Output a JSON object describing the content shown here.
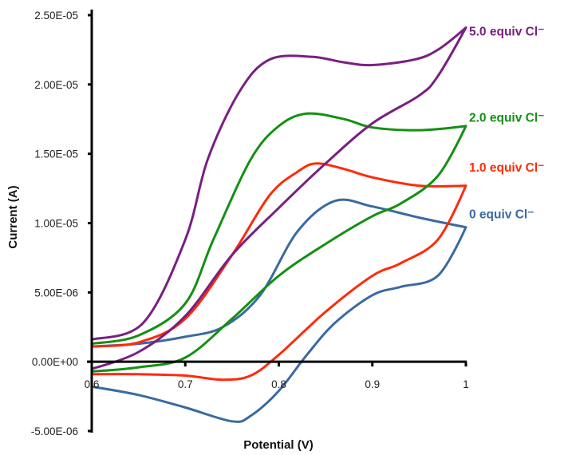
{
  "chart_data": {
    "type": "line",
    "title": "",
    "xlabel": "Potential (V)",
    "ylabel": "Current (A)",
    "xlim": [
      0.6,
      1.0
    ],
    "ylim": [
      -5e-06,
      2.5e-05
    ],
    "grid": false,
    "legend": "inline-right",
    "x_ticks": [
      {
        "value": 0.6,
        "label": "0.6"
      },
      {
        "value": 0.7,
        "label": "0.7"
      },
      {
        "value": 0.8,
        "label": "0.8"
      },
      {
        "value": 0.9,
        "label": "0.9"
      },
      {
        "value": 1.0,
        "label": "1"
      }
    ],
    "y_ticks": [
      {
        "value": -5e-06,
        "label": "-5.00E-06"
      },
      {
        "value": 0,
        "label": "0.00E+00"
      },
      {
        "value": 5e-06,
        "label": "5.00E-06"
      },
      {
        "value": 1e-05,
        "label": "1.00E-05"
      },
      {
        "value": 1.5e-05,
        "label": "1.50E-05"
      },
      {
        "value": 2e-05,
        "label": "2.00E-05"
      },
      {
        "value": 2.5e-05,
        "label": "2.50E-05"
      }
    ],
    "series": [
      {
        "name": "0 equiv Cl⁻",
        "color": "#3a6aa0",
        "points": [
          [
            0.6,
            1.1e-06
          ],
          [
            0.65,
            1.3e-06
          ],
          [
            0.7,
            1.8e-06
          ],
          [
            0.74,
            2.5e-06
          ],
          [
            0.78,
            4.8e-06
          ],
          [
            0.82,
            9.4e-06
          ],
          [
            0.86,
            1.16e-05
          ],
          [
            0.9,
            1.12e-05
          ],
          [
            0.95,
            1.04e-05
          ],
          [
            1.0,
            9.7e-06
          ],
          [
            0.97,
            6.2e-06
          ],
          [
            0.93,
            5.4e-06
          ],
          [
            0.9,
            4.8e-06
          ],
          [
            0.86,
            2.8e-06
          ],
          [
            0.83,
            5e-07
          ],
          [
            0.8,
            -2.1e-06
          ],
          [
            0.77,
            -3.9e-06
          ],
          [
            0.75,
            -4.3e-06
          ],
          [
            0.7,
            -3.3e-06
          ],
          [
            0.65,
            -2.4e-06
          ],
          [
            0.6,
            -1.8e-06
          ]
        ]
      },
      {
        "name": "1.0 equiv Cl⁻",
        "color": "#ff2a0a",
        "points": [
          [
            0.6,
            1.1e-06
          ],
          [
            0.65,
            1.4e-06
          ],
          [
            0.7,
            3.1e-06
          ],
          [
            0.75,
            7.7e-06
          ],
          [
            0.79,
            1.2e-05
          ],
          [
            0.82,
            1.37e-05
          ],
          [
            0.84,
            1.43e-05
          ],
          [
            0.87,
            1.39e-05
          ],
          [
            0.9,
            1.33e-05
          ],
          [
            0.95,
            1.27e-05
          ],
          [
            1.0,
            1.27e-05
          ],
          [
            0.97,
            8.8e-06
          ],
          [
            0.93,
            7.1e-06
          ],
          [
            0.9,
            6.2e-06
          ],
          [
            0.85,
            3.6e-06
          ],
          [
            0.8,
            5e-07
          ],
          [
            0.77,
            -1e-06
          ],
          [
            0.74,
            -1.3e-06
          ],
          [
            0.7,
            -1e-06
          ],
          [
            0.65,
            -9e-07
          ],
          [
            0.6,
            -9e-07
          ]
        ]
      },
      {
        "name": "2.0 equiv Cl⁻",
        "color": "#139013",
        "points": [
          [
            0.6,
            1.3e-06
          ],
          [
            0.65,
            1.9e-06
          ],
          [
            0.7,
            4.2e-06
          ],
          [
            0.73,
            8.8e-06
          ],
          [
            0.77,
            1.46e-05
          ],
          [
            0.8,
            1.7e-05
          ],
          [
            0.83,
            1.79e-05
          ],
          [
            0.87,
            1.75e-05
          ],
          [
            0.9,
            1.69e-05
          ],
          [
            0.95,
            1.67e-05
          ],
          [
            1.0,
            1.7e-05
          ],
          [
            0.97,
            1.34e-05
          ],
          [
            0.93,
            1.14e-05
          ],
          [
            0.9,
            1.05e-05
          ],
          [
            0.85,
            8.5e-06
          ],
          [
            0.8,
            6.2e-06
          ],
          [
            0.75,
            3.1e-06
          ],
          [
            0.7,
            3e-07
          ],
          [
            0.65,
            -4e-07
          ],
          [
            0.6,
            -7e-07
          ]
        ]
      },
      {
        "name": "5.0 equiv Cl⁻",
        "color": "#7a1f82",
        "points": [
          [
            0.6,
            1.6e-06
          ],
          [
            0.655,
            2.8e-06
          ],
          [
            0.7,
            8.8e-06
          ],
          [
            0.724,
            1.46e-05
          ],
          [
            0.758,
            1.95e-05
          ],
          [
            0.79,
            2.18e-05
          ],
          [
            0.835,
            2.2e-05
          ],
          [
            0.869,
            2.16e-05
          ],
          [
            0.9,
            2.14e-05
          ],
          [
            0.945,
            2.18e-05
          ],
          [
            0.97,
            2.25e-05
          ],
          [
            1.0,
            2.41e-05
          ],
          [
            0.97,
            2.06e-05
          ],
          [
            0.95,
            1.92e-05
          ],
          [
            0.9,
            1.72e-05
          ],
          [
            0.85,
            1.43e-05
          ],
          [
            0.8,
            1.11e-05
          ],
          [
            0.75,
            7.7e-06
          ],
          [
            0.7,
            3.3e-06
          ],
          [
            0.65,
            7e-07
          ],
          [
            0.6,
            -5e-07
          ]
        ]
      }
    ]
  }
}
